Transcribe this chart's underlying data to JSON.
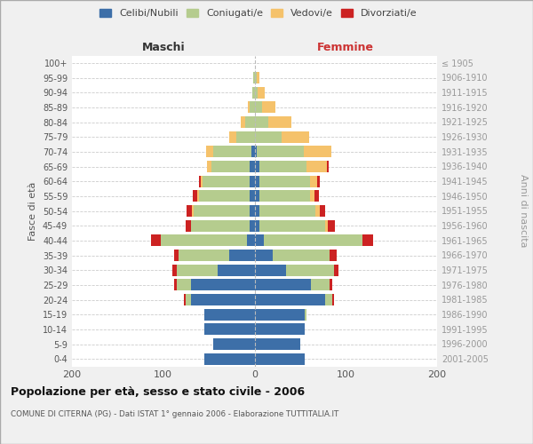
{
  "age_groups": [
    "0-4",
    "5-9",
    "10-14",
    "15-19",
    "20-24",
    "25-29",
    "30-34",
    "35-39",
    "40-44",
    "45-49",
    "50-54",
    "55-59",
    "60-64",
    "65-69",
    "70-74",
    "75-79",
    "80-84",
    "85-89",
    "90-94",
    "95-99",
    "100+"
  ],
  "birth_years": [
    "2001-2005",
    "1996-2000",
    "1991-1995",
    "1986-1990",
    "1981-1985",
    "1976-1980",
    "1971-1975",
    "1966-1970",
    "1961-1965",
    "1956-1960",
    "1951-1955",
    "1946-1950",
    "1941-1945",
    "1936-1940",
    "1931-1935",
    "1926-1930",
    "1921-1925",
    "1916-1920",
    "1911-1915",
    "1906-1910",
    "≤ 1905"
  ],
  "males": {
    "celibi": [
      55,
      45,
      55,
      55,
      70,
      70,
      40,
      28,
      8,
      5,
      5,
      5,
      5,
      5,
      3,
      0,
      0,
      0,
      0,
      0,
      0
    ],
    "coniugati": [
      0,
      0,
      0,
      0,
      5,
      15,
      45,
      55,
      95,
      65,
      62,
      56,
      52,
      42,
      42,
      20,
      10,
      5,
      2,
      1,
      0
    ],
    "vedovi": [
      0,
      0,
      0,
      0,
      0,
      0,
      0,
      0,
      0,
      0,
      2,
      2,
      2,
      5,
      8,
      8,
      5,
      2,
      0,
      0,
      0
    ],
    "divorziati": [
      0,
      0,
      0,
      0,
      2,
      3,
      5,
      5,
      10,
      5,
      5,
      5,
      2,
      0,
      0,
      0,
      0,
      0,
      0,
      0,
      0
    ]
  },
  "females": {
    "nubili": [
      55,
      50,
      55,
      55,
      77,
      62,
      35,
      20,
      10,
      5,
      5,
      5,
      5,
      5,
      2,
      0,
      0,
      0,
      0,
      0,
      0
    ],
    "coniugate": [
      0,
      0,
      0,
      2,
      8,
      20,
      52,
      62,
      108,
      72,
      62,
      56,
      56,
      52,
      52,
      30,
      15,
      8,
      3,
      2,
      0
    ],
    "vedove": [
      0,
      0,
      0,
      0,
      0,
      0,
      0,
      0,
      0,
      3,
      5,
      5,
      8,
      22,
      30,
      30,
      25,
      15,
      8,
      3,
      0
    ],
    "divorziate": [
      0,
      0,
      0,
      0,
      2,
      3,
      5,
      8,
      12,
      8,
      5,
      5,
      3,
      2,
      0,
      0,
      0,
      0,
      0,
      0,
      0
    ]
  },
  "colors": {
    "celibi_nubili": "#3d6fa8",
    "coniugati": "#b5cc8e",
    "vedovi": "#f5c26b",
    "divorziati": "#cc2222"
  },
  "xlim": 200,
  "title": "Popolazione per età, sesso e stato civile - 2006",
  "subtitle": "COMUNE DI CITERNA (PG) - Dati ISTAT 1° gennaio 2006 - Elaborazione TUTTITALIA.IT",
  "ylabel_left": "Fasce di età",
  "ylabel_right": "Anni di nascita",
  "xlabel_left": "Maschi",
  "xlabel_right": "Femmine",
  "bg_color": "#f0f0f0",
  "plot_bg": "#ffffff"
}
